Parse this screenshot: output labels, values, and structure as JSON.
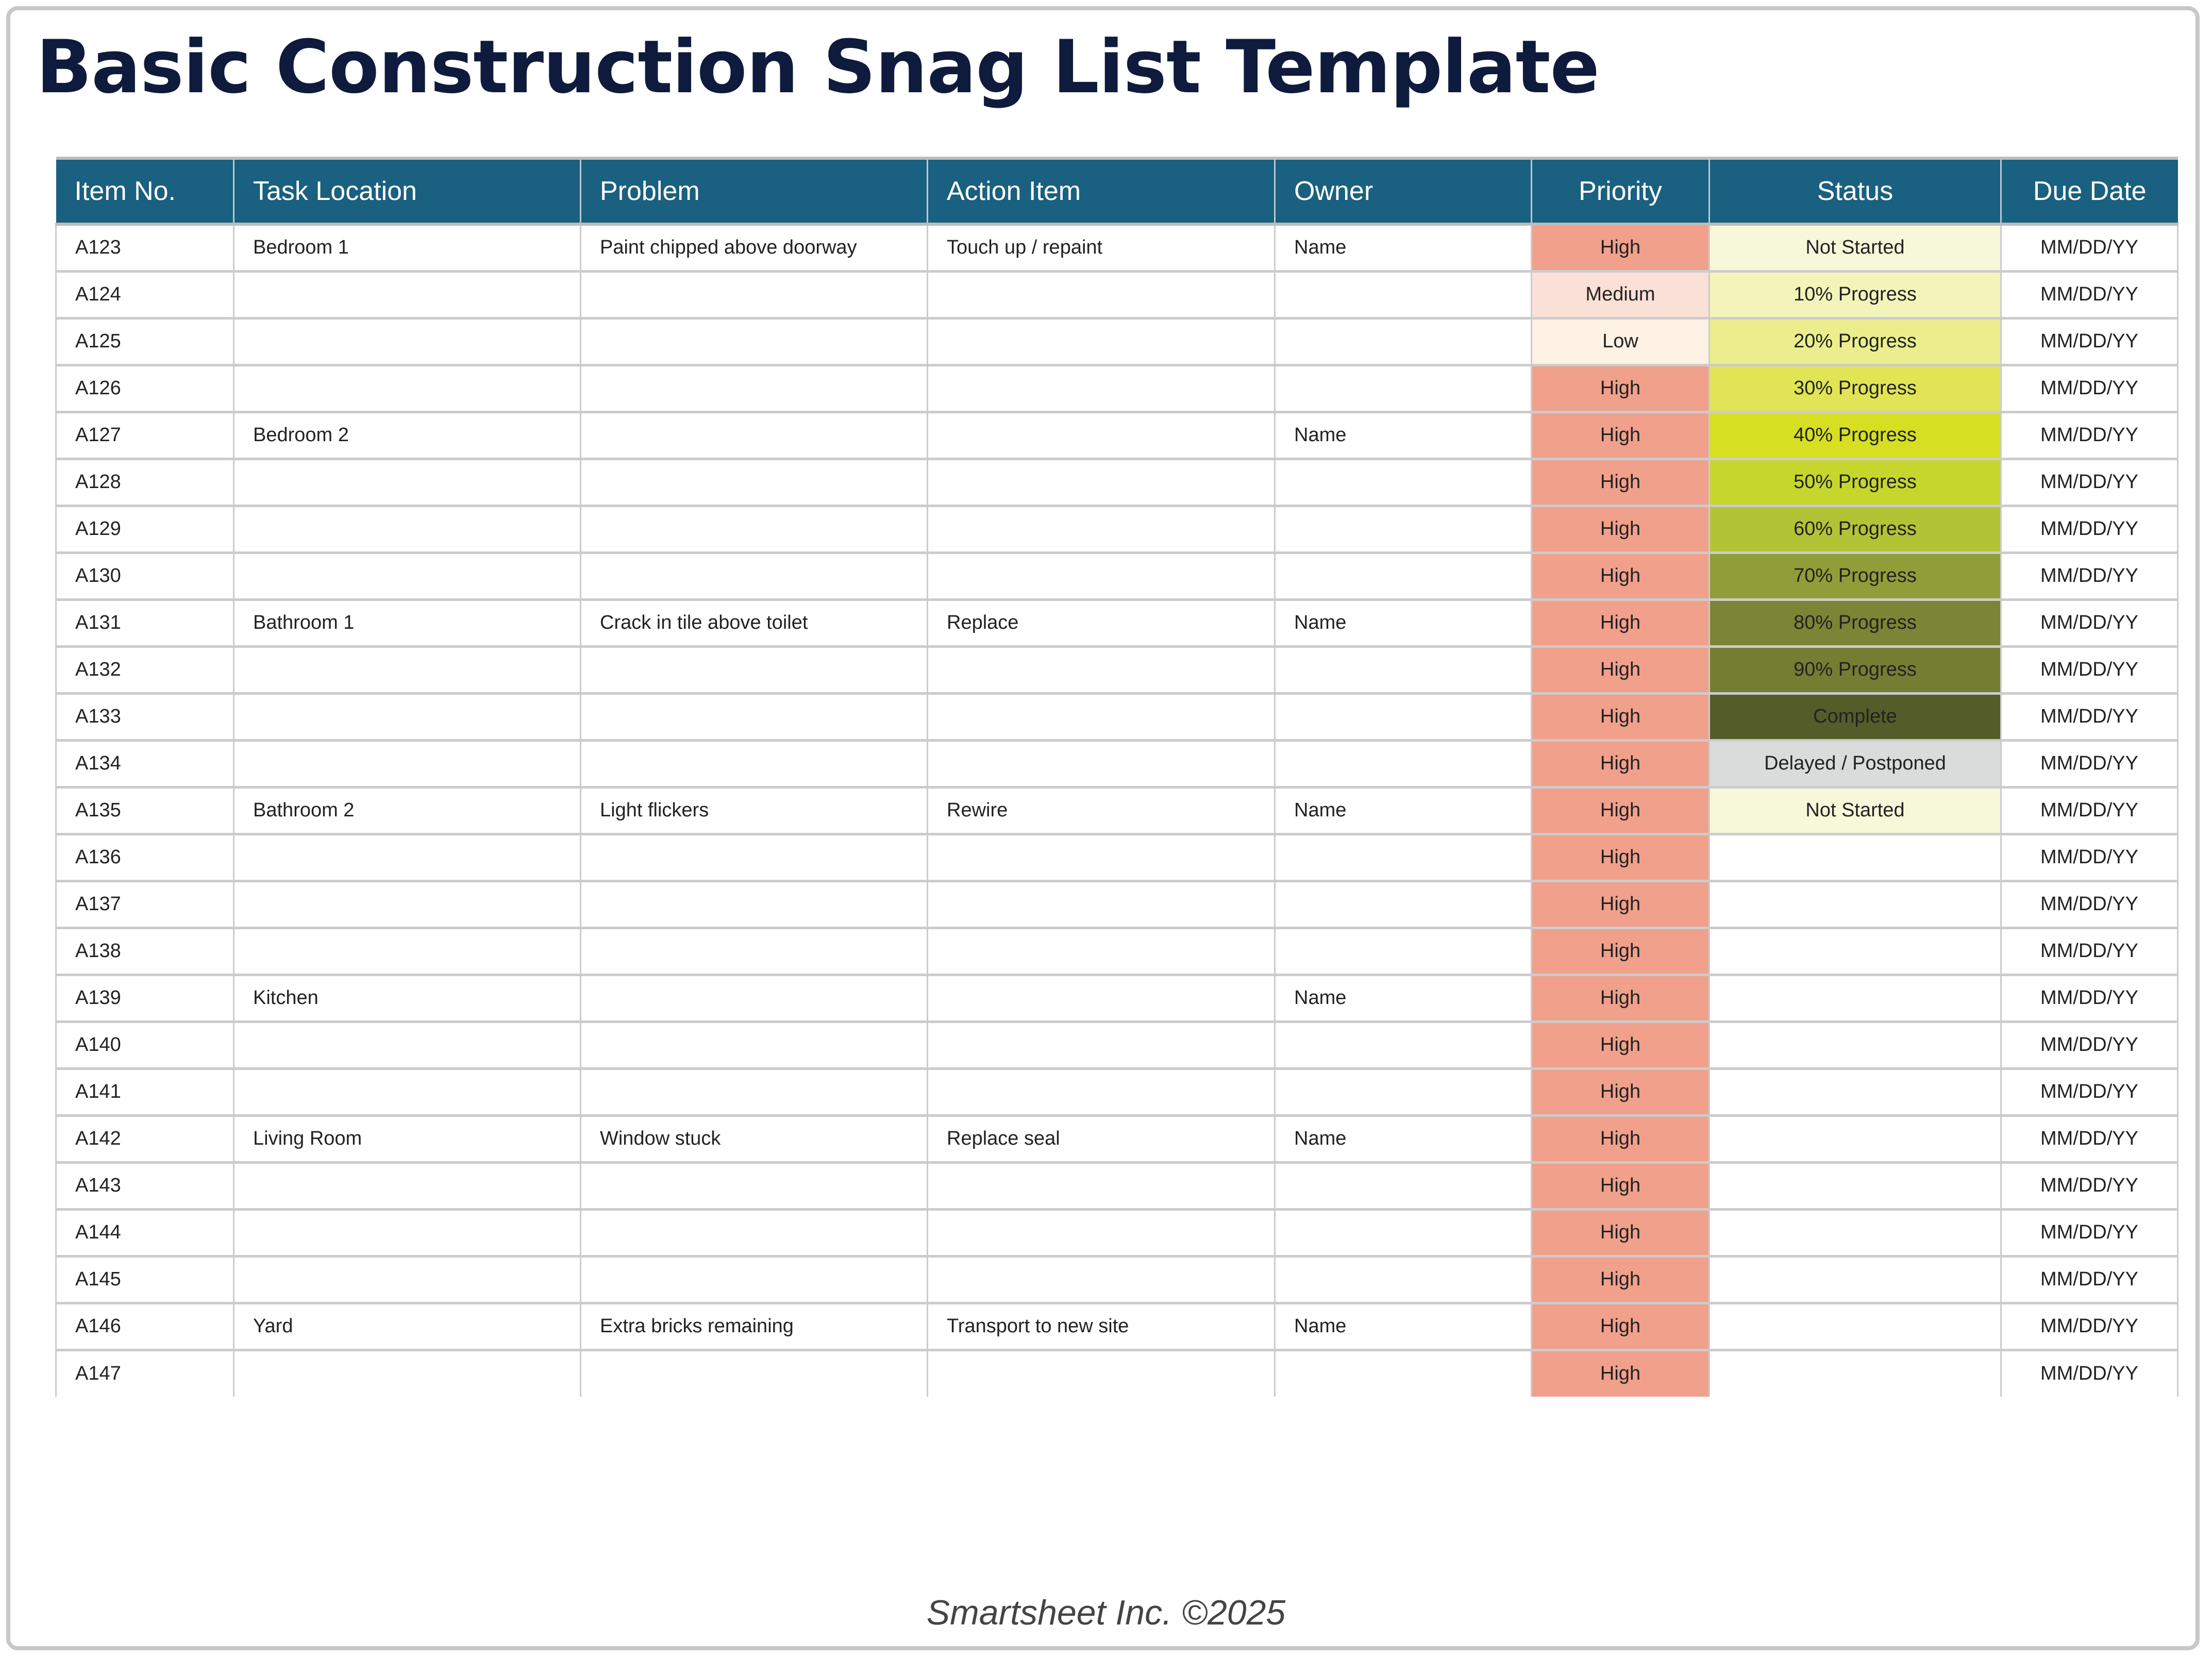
{
  "document": {
    "title": "Basic Construction Snag List Template",
    "footer": "Smartsheet Inc. ©2025"
  },
  "colors": {
    "header_bg": "#1a6080",
    "title": "#0e1b3d",
    "priority": {
      "High": "#f0a08b",
      "Medium": "#fae0d6",
      "Low": "#fdf2e3"
    },
    "status": {
      "Not Started": "#f7f7d9",
      "10% Progress": "#f3f4ba",
      "20% Progress": "#ecee8d",
      "30% Progress": "#e1e454",
      "40% Progress": "#d6df22",
      "50% Progress": "#c7d62c",
      "60% Progress": "#b3c336",
      "70% Progress": "#919d38",
      "80% Progress": "#7a8535",
      "90% Progress": "#737e33",
      "Complete": "#545c29",
      "Delayed / Postponed": "#d9dcda"
    }
  },
  "table": {
    "columns": [
      "Item No.",
      "Task Location",
      "Problem",
      "Action Item",
      "Owner",
      "Priority",
      "Status",
      "Due Date"
    ],
    "rows": [
      {
        "item": "A123",
        "location": "Bedroom 1",
        "problem": "Paint chipped above doorway",
        "action": "Touch up / repaint",
        "owner": "Name",
        "priority": "High",
        "status": "Not Started",
        "due": "MM/DD/YY"
      },
      {
        "item": "A124",
        "location": "",
        "problem": "",
        "action": "",
        "owner": "",
        "priority": "Medium",
        "status": "10% Progress",
        "due": "MM/DD/YY"
      },
      {
        "item": "A125",
        "location": "",
        "problem": "",
        "action": "",
        "owner": "",
        "priority": "Low",
        "status": "20% Progress",
        "due": "MM/DD/YY"
      },
      {
        "item": "A126",
        "location": "",
        "problem": "",
        "action": "",
        "owner": "",
        "priority": "High",
        "status": "30% Progress",
        "due": "MM/DD/YY"
      },
      {
        "item": "A127",
        "location": "Bedroom 2",
        "problem": "",
        "action": "",
        "owner": "Name",
        "priority": "High",
        "status": "40% Progress",
        "due": "MM/DD/YY"
      },
      {
        "item": "A128",
        "location": "",
        "problem": "",
        "action": "",
        "owner": "",
        "priority": "High",
        "status": "50% Progress",
        "due": "MM/DD/YY"
      },
      {
        "item": "A129",
        "location": "",
        "problem": "",
        "action": "",
        "owner": "",
        "priority": "High",
        "status": "60% Progress",
        "due": "MM/DD/YY"
      },
      {
        "item": "A130",
        "location": "",
        "problem": "",
        "action": "",
        "owner": "",
        "priority": "High",
        "status": "70% Progress",
        "due": "MM/DD/YY"
      },
      {
        "item": "A131",
        "location": "Bathroom 1",
        "problem": "Crack in tile above toilet",
        "action": "Replace",
        "owner": "Name",
        "priority": "High",
        "status": "80% Progress",
        "due": "MM/DD/YY"
      },
      {
        "item": "A132",
        "location": "",
        "problem": "",
        "action": "",
        "owner": "",
        "priority": "High",
        "status": "90% Progress",
        "due": "MM/DD/YY"
      },
      {
        "item": "A133",
        "location": "",
        "problem": "",
        "action": "",
        "owner": "",
        "priority": "High",
        "status": "Complete",
        "due": "MM/DD/YY"
      },
      {
        "item": "A134",
        "location": "",
        "problem": "",
        "action": "",
        "owner": "",
        "priority": "High",
        "status": "Delayed / Postponed",
        "due": "MM/DD/YY"
      },
      {
        "item": "A135",
        "location": "Bathroom 2",
        "problem": "Light flickers",
        "action": "Rewire",
        "owner": "Name",
        "priority": "High",
        "status": "Not Started",
        "due": "MM/DD/YY"
      },
      {
        "item": "A136",
        "location": "",
        "problem": "",
        "action": "",
        "owner": "",
        "priority": "High",
        "status": "",
        "due": "MM/DD/YY"
      },
      {
        "item": "A137",
        "location": "",
        "problem": "",
        "action": "",
        "owner": "",
        "priority": "High",
        "status": "",
        "due": "MM/DD/YY"
      },
      {
        "item": "A138",
        "location": "",
        "problem": "",
        "action": "",
        "owner": "",
        "priority": "High",
        "status": "",
        "due": "MM/DD/YY"
      },
      {
        "item": "A139",
        "location": "Kitchen",
        "problem": "",
        "action": "",
        "owner": "Name",
        "priority": "High",
        "status": "",
        "due": "MM/DD/YY"
      },
      {
        "item": "A140",
        "location": "",
        "problem": "",
        "action": "",
        "owner": "",
        "priority": "High",
        "status": "",
        "due": "MM/DD/YY"
      },
      {
        "item": "A141",
        "location": "",
        "problem": "",
        "action": "",
        "owner": "",
        "priority": "High",
        "status": "",
        "due": "MM/DD/YY"
      },
      {
        "item": "A142",
        "location": "Living Room",
        "problem": "Window stuck",
        "action": "Replace seal",
        "owner": "Name",
        "priority": "High",
        "status": "",
        "due": "MM/DD/YY"
      },
      {
        "item": "A143",
        "location": "",
        "problem": "",
        "action": "",
        "owner": "",
        "priority": "High",
        "status": "",
        "due": "MM/DD/YY"
      },
      {
        "item": "A144",
        "location": "",
        "problem": "",
        "action": "",
        "owner": "",
        "priority": "High",
        "status": "",
        "due": "MM/DD/YY"
      },
      {
        "item": "A145",
        "location": "",
        "problem": "",
        "action": "",
        "owner": "",
        "priority": "High",
        "status": "",
        "due": "MM/DD/YY"
      },
      {
        "item": "A146",
        "location": "Yard",
        "problem": "Extra bricks remaining",
        "action": "Transport to new site",
        "owner": "Name",
        "priority": "High",
        "status": "",
        "due": "MM/DD/YY"
      },
      {
        "item": "A147",
        "location": "",
        "problem": "",
        "action": "",
        "owner": "",
        "priority": "High",
        "status": "",
        "due": "MM/DD/YY"
      }
    ]
  }
}
